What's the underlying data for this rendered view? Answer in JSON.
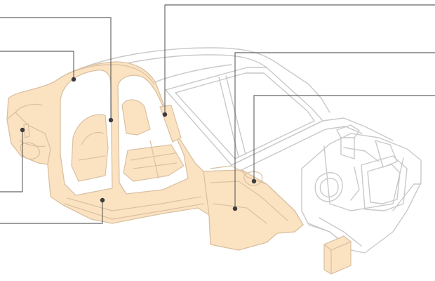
{
  "colors": {
    "highlight_fill": "#fbe3c2",
    "highlight_stroke": "#d9c1a2",
    "outline": "#c9c9c9",
    "leader": "#3c3c3c",
    "background": "#ffffff"
  },
  "callouts": [
    {
      "id": "rear-quarter-outer"
    },
    {
      "id": "roof-side-rail"
    },
    {
      "id": "rear-quarter-panel"
    },
    {
      "id": "side-sill"
    },
    {
      "id": "b-pillar"
    },
    {
      "id": "a-pillar-upper"
    },
    {
      "id": "front-side-member"
    },
    {
      "id": "front-strut-tower"
    }
  ]
}
